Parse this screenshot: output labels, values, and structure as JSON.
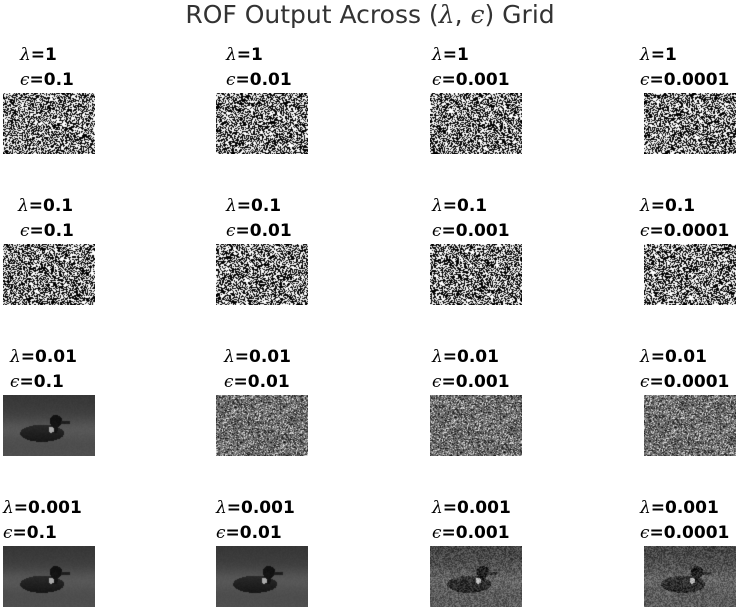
{
  "title": {
    "text": "ROF Output Across (",
    "lambda_sym": "λ",
    "sep": ", ",
    "eps_sym": "ϵ",
    "text_end": ") Grid"
  },
  "grid": {
    "rows": [
      {
        "cells": [
          {
            "lambda": "=1",
            "eps": "=0.1",
            "content": "binary-noise"
          },
          {
            "lambda": "=1",
            "eps": "=0.01",
            "content": "binary-noise"
          },
          {
            "lambda": "=1",
            "eps": "=0.001",
            "content": "binary-noise"
          },
          {
            "lambda": "=1",
            "eps": "=0.0001",
            "content": "binary-noise"
          }
        ]
      },
      {
        "cells": [
          {
            "lambda": "=0.1",
            "eps": "=0.1",
            "content": "binary-noise"
          },
          {
            "lambda": "=0.1",
            "eps": "=0.01",
            "content": "binary-noise"
          },
          {
            "lambda": "=0.1",
            "eps": "=0.001",
            "content": "binary-noise"
          },
          {
            "lambda": "=0.1",
            "eps": "=0.0001",
            "content": "binary-noise"
          }
        ]
      },
      {
        "cells": [
          {
            "lambda": "=0.01",
            "eps": "=0.1",
            "content": "duck-smooth"
          },
          {
            "lambda": "=0.01",
            "eps": "=0.01",
            "content": "gray-noise"
          },
          {
            "lambda": "=0.01",
            "eps": "=0.001",
            "content": "gray-noise"
          },
          {
            "lambda": "=0.01",
            "eps": "=0.0001",
            "content": "gray-noise"
          }
        ]
      },
      {
        "cells": [
          {
            "lambda": "=0.001",
            "eps": "=0.1",
            "content": "duck-smooth"
          },
          {
            "lambda": "=0.001",
            "eps": "=0.01",
            "content": "duck-smooth"
          },
          {
            "lambda": "=0.001",
            "eps": "=0.001",
            "content": "duck-noisy"
          },
          {
            "lambda": "=0.001",
            "eps": "=0.0001",
            "content": "duck-noisy"
          }
        ]
      }
    ]
  }
}
